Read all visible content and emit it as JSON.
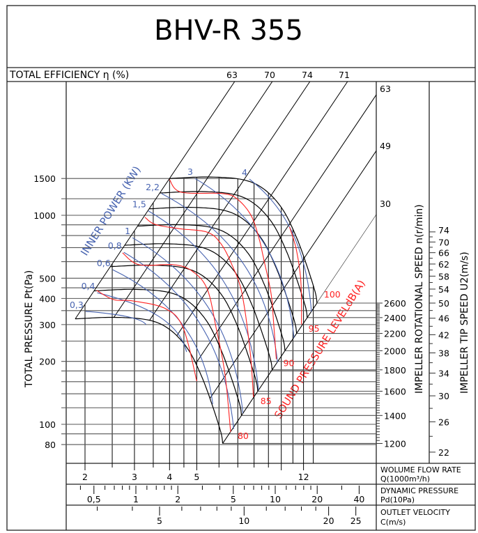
{
  "title": "BHV-R 355",
  "chart_data": {
    "type": "line",
    "title": "BHV-R 355",
    "efficiency": {
      "label": "TOTAL EFFICIENCY η (%)",
      "values": [
        "63",
        "70",
        "74",
        "71"
      ]
    },
    "y_axis": {
      "label": "TOTAL PRESSURE Pt(Pa)",
      "scale": "log",
      "range": [
        80,
        1500
      ],
      "ticks": [
        1500,
        1000,
        500,
        400,
        300,
        200,
        100,
        80
      ]
    },
    "x_axis": {
      "label": "WOLUME FLOW RATE",
      "unit": "Q(1000m³/h)",
      "scale": "log",
      "ticks": [
        2,
        3,
        4,
        5,
        12
      ],
      "minor_ticks": [
        2.5,
        3.5,
        4.5,
        6,
        7,
        8,
        9,
        10
      ]
    },
    "dynamic_pressure_axis": {
      "label": "DYNAMIC PRESSURE",
      "unit": "Pd(10Pa)",
      "ticks": [
        {
          "value": 0.5,
          "label": "0,5"
        },
        {
          "value": 1,
          "label": "1"
        },
        {
          "value": 2,
          "label": "2"
        },
        {
          "value": 5,
          "label": "5"
        },
        {
          "value": 10,
          "label": "10"
        },
        {
          "value": 20,
          "label": "20"
        },
        {
          "value": 40,
          "label": "40"
        }
      ]
    },
    "outlet_velocity_axis": {
      "label": "OUTLET VELOCITY",
      "unit": "C(m/s)",
      "ticks": [
        5,
        10,
        20,
        25
      ]
    },
    "speed_axis": {
      "label": "IMPELLER ROTATIONAL SPEED n(r/min)",
      "ticks": [
        2600,
        2400,
        2200,
        2000,
        1800,
        1600,
        1400,
        1200
      ]
    },
    "tip_speed_axis": {
      "label": "IMPELLER TIP SPEED U2(m/s)",
      "ticks": [
        74,
        70,
        66,
        62,
        58,
        54,
        50,
        46,
        42,
        38,
        34,
        30,
        26,
        22
      ]
    },
    "system_line_labels": [
      "63",
      "49",
      "30"
    ],
    "fan_curves": {
      "speeds": [
        2600,
        2400,
        2200,
        2000,
        1800,
        1600,
        1400,
        1200
      ],
      "reference_speed": 2600,
      "reference_curve": [
        [
          4,
          1500
        ],
        [
          5.5,
          1525
        ],
        [
          7.3,
          1480
        ],
        [
          8.7,
          1330
        ],
        [
          10.1,
          1070
        ],
        [
          11.3,
          790
        ],
        [
          12.3,
          580
        ],
        [
          13.2,
          430
        ],
        [
          13.4,
          380
        ]
      ]
    },
    "power_curves": {
      "label": "INNER POWER (KW)",
      "series": [
        {
          "name": "0,3",
          "start": [
            2.01,
            347
          ],
          "end": [
            3.3,
            300
          ]
        },
        {
          "name": "0,4",
          "start": [
            2.21,
            426
          ],
          "end": [
            4.6,
            222
          ]
        },
        {
          "name": "0,6",
          "start": [
            2.51,
            549
          ],
          "end": [
            5.7,
            125
          ]
        },
        {
          "name": "0,8",
          "start": [
            2.75,
            665
          ],
          "end": [
            6.77,
            95
          ]
        },
        {
          "name": "1",
          "start": [
            2.95,
            781
          ],
          "end": [
            7.3,
            113
          ]
        },
        {
          "name": "1,5",
          "start": [
            3.36,
            1050
          ],
          "end": [
            8.3,
            146
          ]
        },
        {
          "name": "2,2",
          "start": [
            3.75,
            1270
          ],
          "end": [
            9.7,
            198
          ]
        },
        {
          "name": "3",
          "start": [
            4.93,
            1500
          ],
          "end": [
            11.1,
            259
          ]
        },
        {
          "name": "4",
          "start": [
            7.7,
            1490
          ],
          "end": [
            12.8,
            346
          ]
        }
      ]
    },
    "sound_curves": {
      "label": "SOUND PRESSURE LEVELdB(A)",
      "series": [
        {
          "name": "",
          "points": [
            [
              2.2,
              437
            ],
            [
              2.53,
              395
            ],
            [
              2.97,
              389
            ],
            [
              3.86,
              358
            ],
            [
              4.47,
              290
            ],
            [
              5.0,
              161
            ]
          ]
        },
        {
          "name": "80",
          "points": [
            [
              2.72,
              661
            ],
            [
              3.12,
              580
            ],
            [
              4.16,
              580
            ],
            [
              4.85,
              537
            ],
            [
              5.45,
              443
            ],
            [
              5.86,
              290
            ],
            [
              6.3,
              174
            ],
            [
              6.6,
              92
            ]
          ]
        },
        {
          "name": "85",
          "points": [
            [
              3.27,
              978
            ],
            [
              3.56,
              904
            ],
            [
              4.33,
              863
            ],
            [
              5.45,
              830
            ],
            [
              6.1,
              730
            ],
            [
              6.67,
              580
            ],
            [
              7.24,
              425
            ],
            [
              7.74,
              225
            ],
            [
              7.96,
              135
            ]
          ]
        },
        {
          "name": "90",
          "points": [
            [
              4.0,
              1480
            ],
            [
              4.4,
              1290
            ],
            [
              6.2,
              1270
            ],
            [
              7.0,
              1190
            ],
            [
              7.8,
              1000
            ],
            [
              8.3,
              790
            ],
            [
              8.7,
              600
            ],
            [
              9.2,
              420
            ],
            [
              9.4,
              300
            ],
            [
              9.6,
              205
            ]
          ]
        },
        {
          "name": "95",
          "points": [
            [
              10.7,
              880
            ],
            [
              11.3,
              690
            ],
            [
              11.7,
              510
            ],
            [
              11.8,
              380
            ],
            [
              11.8,
              300
            ]
          ]
        },
        {
          "name": "100",
          "points": []
        }
      ]
    },
    "colors": {
      "fan": "#000000",
      "power": "#4763b0",
      "sound": "#ff2222"
    }
  }
}
